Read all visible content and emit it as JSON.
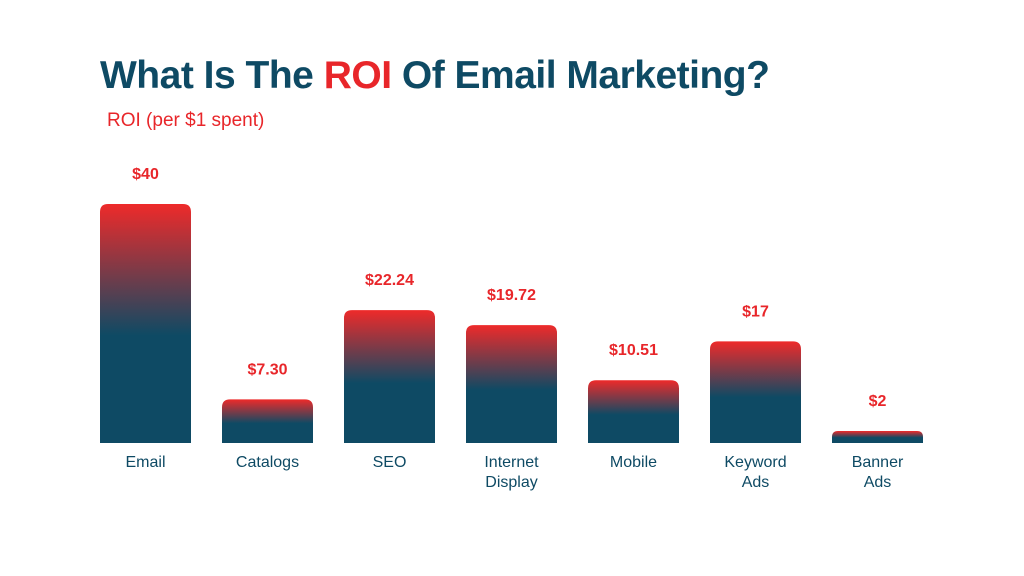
{
  "title": {
    "before": "What Is The ",
    "highlight": "ROI",
    "after": " Of Email Marketing?"
  },
  "chart_data": {
    "type": "bar",
    "ylabel": "ROI (per $1 spent)",
    "xlabel": "",
    "categories": [
      [
        "Email"
      ],
      [
        "Catalogs"
      ],
      [
        "SEO"
      ],
      [
        "Internet",
        "Display"
      ],
      [
        "Mobile"
      ],
      [
        "Keyword",
        "Ads"
      ],
      [
        "Banner",
        "Ads"
      ]
    ],
    "values": [
      40,
      7.3,
      22.24,
      19.72,
      10.51,
      17,
      2
    ],
    "data_labels": [
      "$40",
      "$7.30",
      "$22.24",
      "$19.72",
      "$10.51",
      "$17",
      "$2"
    ],
    "ylim": [
      0,
      40
    ],
    "grid": false,
    "colors": {
      "top": "#ee2a2a",
      "bottom": "#0e4a64",
      "title": "#0e4a64",
      "accent": "#e8262a"
    }
  }
}
